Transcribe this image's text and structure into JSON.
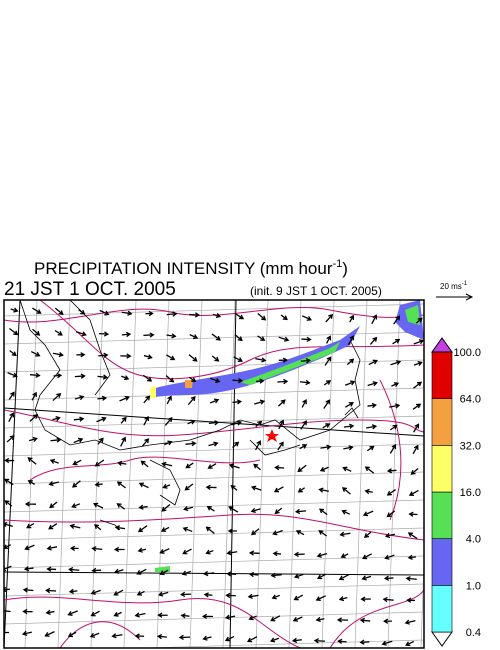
{
  "title": {
    "main": "PRECIPITATION INTENSITY (mm hour",
    "superscript": "-1",
    "end": ")"
  },
  "valid_time": "21 JST 1 OCT. 2005",
  "init_time": "(init. 9 JST 1 OCT. 2005)",
  "reference_vector": {
    "label": "20 ms",
    "superscript": "-1"
  },
  "colorbar": {
    "levels": [
      {
        "value": 0.4,
        "label": "0.4"
      },
      {
        "value": 1,
        "label": "1.0"
      },
      {
        "value": 4,
        "label": "4.0"
      },
      {
        "value": 16,
        "label": "16.0"
      },
      {
        "value": 32,
        "label": "32.0"
      },
      {
        "value": 64,
        "label": "64.0"
      },
      {
        "value": 100,
        "label": "100.0"
      }
    ],
    "colors": [
      "#ffffff",
      "#66ffff",
      "#6666f2",
      "#55e055",
      "#ffff66",
      "#f2a040",
      "#e00000",
      "#c040e0"
    ]
  }
}
